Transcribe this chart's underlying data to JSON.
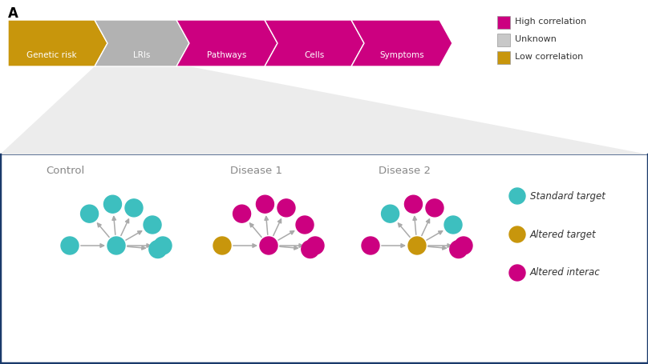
{
  "bg_color": "#ffffff",
  "panel_label": "A",
  "chevrons": [
    {
      "label": "Genetic risk",
      "color": "#C8960C",
      "first": true
    },
    {
      "label": "LRIs",
      "color": "#b2b2b2",
      "first": false
    },
    {
      "label": "Pathways",
      "color": "#CC0080",
      "first": false
    },
    {
      "label": "Cells",
      "color": "#CC0080",
      "first": false
    },
    {
      "label": "Symptoms",
      "color": "#CC0080",
      "first": false
    }
  ],
  "legend_top": [
    {
      "label": "High correlation",
      "color": "#CC0080"
    },
    {
      "label": "Unknown",
      "color": "#c8c8c8"
    },
    {
      "label": "Low correlation",
      "color": "#C8960C"
    }
  ],
  "node_colors": {
    "standard": "#3dbfbf",
    "altered_target": "#C8960C",
    "altered_interact": "#CC0080"
  },
  "network_labels": [
    "Control",
    "Disease 1",
    "Disease 2"
  ],
  "legend_nodes": [
    "Standard target",
    "Altered target",
    "Altered interac"
  ],
  "funnel_color": "#e0e0e0",
  "panel_border_color": "#1a3a6b",
  "text_color_gray": "#888888"
}
